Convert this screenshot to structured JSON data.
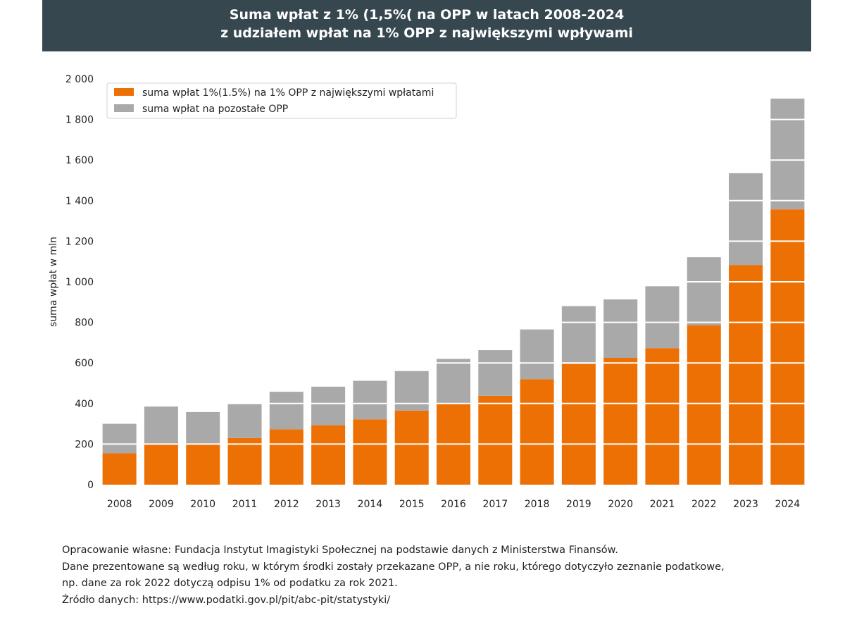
{
  "header": {
    "title_line1": "Suma wpłat z 1% (1,5%( na OPP w latach 2008-2024",
    "title_line2": "z udziałem wpłat na 1% OPP z największymi wpływami"
  },
  "chart_data": {
    "type": "bar",
    "stacked": true,
    "categories": [
      "2008",
      "2009",
      "2010",
      "2011",
      "2012",
      "2013",
      "2014",
      "2015",
      "2016",
      "2017",
      "2018",
      "2019",
      "2020",
      "2021",
      "2022",
      "2023",
      "2024"
    ],
    "series": [
      {
        "name": "suma wpłat 1%(1.5%) na 1% OPP z największymi wpłatami",
        "color": "#ed7004",
        "values": [
          155,
          200,
          198,
          230,
          273,
          293,
          322,
          365,
          400,
          438,
          520,
          595,
          625,
          673,
          786,
          1083,
          1357
        ]
      },
      {
        "name": "suma wpłat na pozostałe OPP",
        "color": "#a9a9a9",
        "values": [
          145,
          185,
          160,
          170,
          185,
          190,
          190,
          195,
          220,
          225,
          245,
          285,
          288,
          305,
          335,
          452,
          546
        ]
      }
    ],
    "ylabel": "suma wpłat w mln",
    "xlabel": "",
    "ylim": [
      0,
      2000
    ],
    "yticks": [
      0,
      200,
      400,
      600,
      800,
      1000,
      1200,
      1400,
      1600,
      1800,
      2000
    ],
    "ytick_labels": [
      "0",
      "200",
      "400",
      "600",
      "800",
      "1 000",
      "1 200",
      "1 400",
      "1 600",
      "1 800",
      "2 000"
    ],
    "grid": "horizontal white lines over bars",
    "legend_position": "top-left"
  },
  "footer": {
    "line1": "Opracowanie własne: Fundacja Instytut Imagistyki Społecznej na podstawie danych z Ministerstwa Finansów.",
    "line2": "Dane prezentowane są według roku, w którym środki zostały przekazane OPP, a nie roku, którego dotyczyło zeznanie podatkowe,",
    "line3": "np. dane za rok 2022 dotyczą odpisu 1% od podatku za rok 2021.",
    "line4": "Źródło danych: https://www.podatki.gov.pl/pit/abc-pit/statystyki/"
  }
}
